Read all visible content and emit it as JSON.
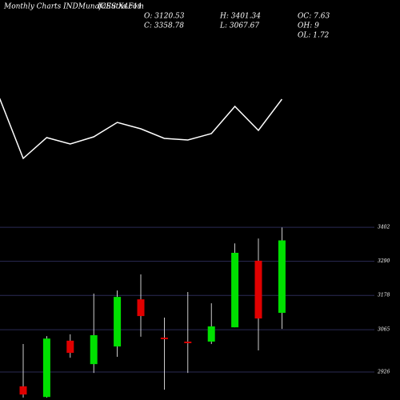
{
  "header": {
    "site": "Monthly Charts INDMunafaSutra.com",
    "symbol": "ICES X4F11",
    "o": "O: 3120.53",
    "h": "H: 3401.34",
    "oc": "OC: 7.63",
    "c": "C: 3358.78",
    "l": "L: 3067.67",
    "oh": "OH: 9",
    "ol": "OL: 1.72"
  },
  "chart_data": [
    {
      "type": "line",
      "color": "#ffffff",
      "ylim": [
        0,
        100
      ],
      "values": [
        87,
        12,
        38,
        30,
        39,
        57,
        49,
        37,
        35,
        43,
        77,
        47,
        86
      ]
    },
    {
      "type": "candlestick",
      "up_color": "#00e000",
      "down_color": "#e00000",
      "grid": true,
      "ylim": [
        2834,
        3439
      ],
      "yticks": [
        3402,
        3290,
        3178,
        3065,
        2926
      ],
      "open": [
        2879,
        2844,
        3029,
        2952,
        3010,
        3165,
        3039,
        3026,
        3026,
        3073,
        3292,
        3120.53
      ],
      "high": [
        3018,
        3044,
        3050,
        3184,
        3194,
        3247,
        3105,
        3189,
        3152,
        3349,
        3365,
        3401.34
      ],
      "low": [
        2842,
        2842,
        2973,
        2923,
        2976,
        3042,
        2868,
        2923,
        3018,
        3073,
        2997,
        3067.67
      ],
      "close": [
        2852,
        3036,
        2989,
        3047,
        3173,
        3110,
        3034,
        3021,
        3076,
        3318,
        3102,
        3358.78
      ]
    }
  ]
}
